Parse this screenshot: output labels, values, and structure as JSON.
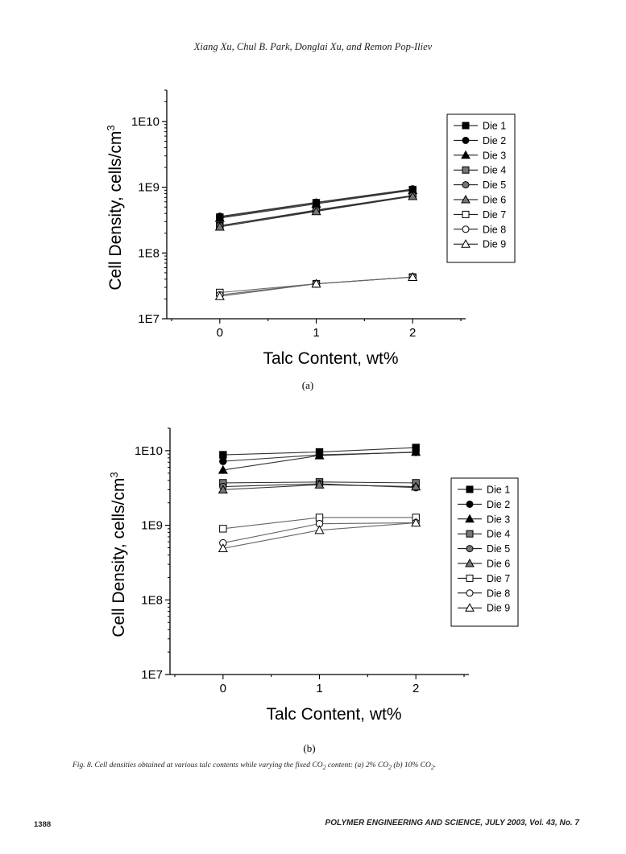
{
  "header": {
    "authors": "Xiang Xu, Chul B. Park, Donglai Xu, and Remon Pop-Iliev"
  },
  "chart_data": [
    {
      "type": "line",
      "panel_label": "(a)",
      "xlabel": "Talc Content, wt%",
      "ylabel": "Cell Density, cells/cm",
      "ylabel_sup": "3",
      "x_ticks": [
        0,
        1,
        2
      ],
      "y_ticks": [
        "1E7",
        "1E8",
        "1E9",
        "1E10"
      ],
      "y_scale": "log",
      "xlim": [
        -0.55,
        2.55
      ],
      "ylim": [
        10000000.0,
        30000000000.0
      ],
      "legend_position": "right",
      "x": [
        0,
        1,
        2
      ],
      "series": [
        {
          "name": "Die 1",
          "marker": "square",
          "fill": "#000000",
          "values": [
            350000000.0,
            580000000.0,
            920000000.0
          ]
        },
        {
          "name": "Die 2",
          "marker": "circle",
          "fill": "#000000",
          "values": [
            360000000.0,
            590000000.0,
            940000000.0
          ]
        },
        {
          "name": "Die 3",
          "marker": "triangle",
          "fill": "#000000",
          "values": [
            340000000.0,
            560000000.0,
            900000000.0
          ]
        },
        {
          "name": "Die 4",
          "marker": "square",
          "fill": "#777777",
          "values": [
            260000000.0,
            440000000.0,
            740000000.0
          ]
        },
        {
          "name": "Die 5",
          "marker": "circle",
          "fill": "#777777",
          "values": [
            260000000.0,
            450000000.0,
            750000000.0
          ]
        },
        {
          "name": "Die 6",
          "marker": "triangle",
          "fill": "#777777",
          "values": [
            250000000.0,
            430000000.0,
            730000000.0
          ]
        },
        {
          "name": "Die 7",
          "marker": "square",
          "fill": "#ffffff",
          "values": [
            25000000.0,
            34000000.0,
            43000000.0
          ]
        },
        {
          "name": "Die 8",
          "marker": "circle",
          "fill": "#ffffff",
          "values": [
            23000000.0,
            34000000.0,
            43000000.0
          ]
        },
        {
          "name": "Die 9",
          "marker": "triangle",
          "fill": "#ffffff",
          "values": [
            22000000.0,
            34000000.0,
            43000000.0
          ]
        }
      ]
    },
    {
      "type": "line",
      "panel_label": "(b)",
      "xlabel": "Talc Content, wt%",
      "ylabel": "Cell Density, cells/cm",
      "ylabel_sup": "3",
      "x_ticks": [
        0,
        1,
        2
      ],
      "y_ticks": [
        "1E7",
        "1E8",
        "1E9",
        "1E10"
      ],
      "y_scale": "log",
      "xlim": [
        -0.55,
        2.55
      ],
      "ylim": [
        10000000.0,
        20000000000.0
      ],
      "legend_position": "right",
      "x": [
        0,
        1,
        2
      ],
      "series": [
        {
          "name": "Die 1",
          "marker": "square",
          "fill": "#000000",
          "values": [
            8800000000.0,
            9600000000.0,
            11000000000.0
          ]
        },
        {
          "name": "Die 2",
          "marker": "circle",
          "fill": "#000000",
          "values": [
            7200000000.0,
            8800000000.0,
            9500000000.0
          ]
        },
        {
          "name": "Die 3",
          "marker": "triangle",
          "fill": "#000000",
          "values": [
            5500000000.0,
            8600000000.0,
            9600000000.0
          ]
        },
        {
          "name": "Die 4",
          "marker": "square",
          "fill": "#777777",
          "values": [
            3700000000.0,
            3800000000.0,
            3700000000.0
          ]
        },
        {
          "name": "Die 5",
          "marker": "circle",
          "fill": "#777777",
          "values": [
            3300000000.0,
            3600000000.0,
            3200000000.0
          ]
        },
        {
          "name": "Die 6",
          "marker": "triangle",
          "fill": "#777777",
          "values": [
            3000000000.0,
            3500000000.0,
            3300000000.0
          ]
        },
        {
          "name": "Die 7",
          "marker": "square",
          "fill": "#ffffff",
          "values": [
            900000000.0,
            1270000000.0,
            1270000000.0
          ]
        },
        {
          "name": "Die 8",
          "marker": "circle",
          "fill": "#ffffff",
          "values": [
            580000000.0,
            1050000000.0,
            1080000000.0
          ]
        },
        {
          "name": "Die 9",
          "marker": "triangle",
          "fill": "#ffffff",
          "values": [
            490000000.0,
            860000000.0,
            1080000000.0
          ]
        }
      ]
    }
  ],
  "caption": {
    "prefix": "Fig. 8.",
    "text_1": " Cell densities obtained at various talc contents while varying the fixed CO",
    "sub_1": "2",
    "text_2": " content: (a) 2% CO",
    "sub_2": "2",
    "text_3": " (b) 10% CO",
    "sub_3": "2",
    "text_4": "."
  },
  "footer": {
    "page_number": "1388",
    "journal": "POLYMER ENGINEERING AND SCIENCE, JULY 2003, Vol. 43, No. 7"
  }
}
